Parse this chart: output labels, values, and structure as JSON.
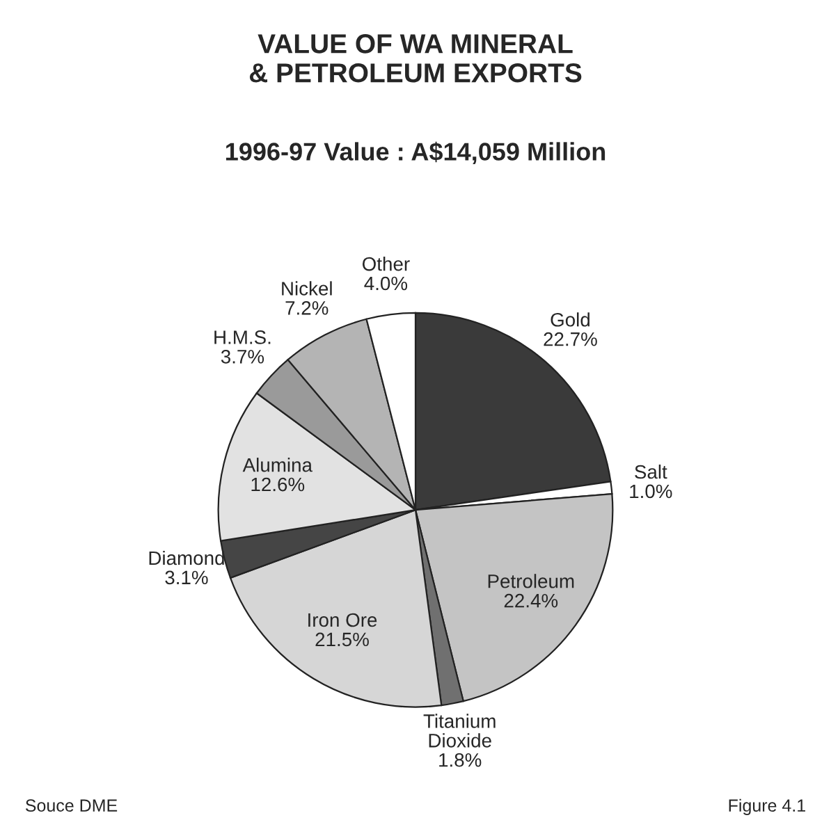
{
  "chart_data": {
    "type": "pie",
    "title": "VALUE OF WA MINERAL\n& PETROLEUM EXPORTS",
    "subtitle": "1996-97 Value : A$14,059 Million",
    "categories": [
      "Gold",
      "Salt",
      "Petroleum",
      "Titanium\nDioxide",
      "Iron Ore",
      "Diamond",
      "Alumina",
      "H.M.S.",
      "Nickel",
      "Other"
    ],
    "values": [
      22.7,
      1.0,
      22.4,
      1.8,
      21.5,
      3.1,
      12.6,
      3.7,
      7.2,
      4.0
    ],
    "value_labels": [
      "22.7%",
      "1.0%",
      "22.4%",
      "1.8%",
      "21.5%",
      "3.1%",
      "12.6%",
      "3.7%",
      "7.2%",
      "4.0%"
    ],
    "colors": [
      "#3a3a3a",
      "#ffffff",
      "#c4c4c4",
      "#707070",
      "#d6d6d6",
      "#454545",
      "#e2e2e2",
      "#9a9a9a",
      "#b4b4b4",
      "#ffffff"
    ],
    "annotations": [
      "Souce DME",
      "Figure 4.1"
    ]
  }
}
